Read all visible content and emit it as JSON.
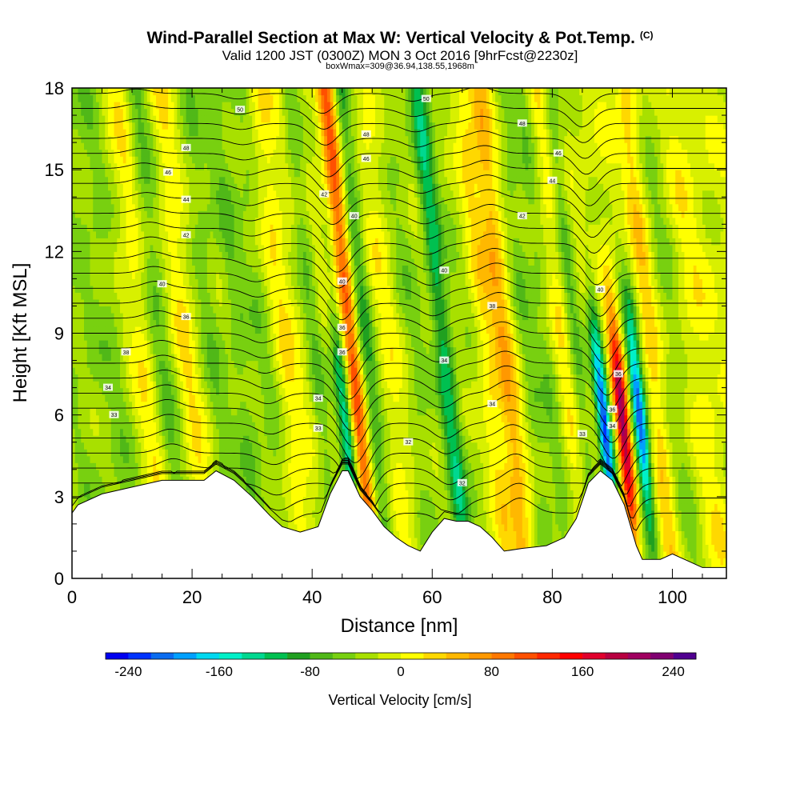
{
  "header": {
    "title": "Wind-Parallel Section at Max W: Vertical Velocity & Pot.Temp.",
    "title_mark": "(C)",
    "subtitle_line1": "Valid 1200 JST (0300Z) MON 3 Oct 2016 [9hrFcst@2230z]",
    "subtitle_line2": "boxWmax=309@36.94,138.55,1968m"
  },
  "chart_data": {
    "type": "heatmap",
    "title": "Wind-Parallel Section at Max W: Vertical Velocity & Pot.Temp.",
    "xlabel": "Distance [nm]",
    "ylabel": "Height [Kft MSL]",
    "xlim": [
      0,
      109
    ],
    "ylim": [
      0,
      18
    ],
    "x_ticks": [
      "0",
      "20",
      "40",
      "60",
      "80",
      "100"
    ],
    "y_ticks": [
      "0",
      "3",
      "6",
      "9",
      "12",
      "15",
      "18"
    ],
    "colorbar": {
      "label": "Vertical Velocity [cm/s]",
      "ticks": [
        "-240",
        "-160",
        "-80",
        "0",
        "80",
        "160",
        "240"
      ],
      "range": [
        -260,
        260
      ],
      "colors": [
        "#0000f0",
        "#0033ff",
        "#0a6cf0",
        "#00a0ff",
        "#00d8f0",
        "#00f0c8",
        "#00d890",
        "#00c050",
        "#20a020",
        "#50b818",
        "#78d010",
        "#a8e000",
        "#d8f000",
        "#ffff00",
        "#ffd800",
        "#ffb800",
        "#ff9800",
        "#ff7800",
        "#ff5000",
        "#ff2800",
        "#ff0000",
        "#e0002c",
        "#b80040",
        "#a00060",
        "#800070",
        "#500090"
      ]
    },
    "terrain_kft": [
      [
        0,
        2.4
      ],
      [
        1,
        2.7
      ],
      [
        5,
        3.1
      ],
      [
        10,
        3.35
      ],
      [
        15,
        3.6
      ],
      [
        22,
        3.6
      ],
      [
        24,
        3.95
      ],
      [
        27,
        3.6
      ],
      [
        30,
        3.0
      ],
      [
        33,
        2.3
      ],
      [
        35,
        1.9
      ],
      [
        38,
        1.7
      ],
      [
        41,
        1.9
      ],
      [
        43,
        3.1
      ],
      [
        45,
        3.95
      ],
      [
        46,
        3.95
      ],
      [
        48,
        3.0
      ],
      [
        50,
        2.5
      ],
      [
        52,
        1.9
      ],
      [
        54,
        1.5
      ],
      [
        56,
        1.2
      ],
      [
        58,
        1.0
      ],
      [
        60,
        1.7
      ],
      [
        62,
        2.2
      ],
      [
        64,
        2.1
      ],
      [
        66,
        2.1
      ],
      [
        68,
        1.9
      ],
      [
        70,
        1.5
      ],
      [
        72,
        1.0
      ],
      [
        75,
        1.1
      ],
      [
        79,
        1.2
      ],
      [
        82,
        1.5
      ],
      [
        84,
        2.2
      ],
      [
        86,
        3.5
      ],
      [
        88,
        3.95
      ],
      [
        90,
        3.6
      ],
      [
        92,
        2.7
      ],
      [
        94,
        1.2
      ],
      [
        95,
        0.7
      ],
      [
        98,
        0.7
      ],
      [
        100,
        0.9
      ],
      [
        103,
        0.6
      ],
      [
        105,
        0.4
      ],
      [
        109,
        0.4
      ]
    ],
    "theta_contour_labels": [
      {
        "x": 28,
        "y": 17.2,
        "text": "50"
      },
      {
        "x": 59,
        "y": 17.6,
        "text": "50"
      },
      {
        "x": 75,
        "y": 16.7,
        "text": "48"
      },
      {
        "x": 19,
        "y": 15.8,
        "text": "48"
      },
      {
        "x": 49,
        "y": 16.3,
        "text": "48"
      },
      {
        "x": 81,
        "y": 15.6,
        "text": "46"
      },
      {
        "x": 16,
        "y": 14.9,
        "text": "46"
      },
      {
        "x": 49,
        "y": 15.4,
        "text": "46"
      },
      {
        "x": 80,
        "y": 14.6,
        "text": "44"
      },
      {
        "x": 19,
        "y": 13.9,
        "text": "44"
      },
      {
        "x": 42,
        "y": 14.1,
        "text": "42"
      },
      {
        "x": 47,
        "y": 13.3,
        "text": "40"
      },
      {
        "x": 75,
        "y": 13.3,
        "text": "42"
      },
      {
        "x": 19,
        "y": 12.6,
        "text": "42"
      },
      {
        "x": 62,
        "y": 11.3,
        "text": "40"
      },
      {
        "x": 15,
        "y": 10.8,
        "text": "40"
      },
      {
        "x": 45,
        "y": 10.9,
        "text": "40"
      },
      {
        "x": 88,
        "y": 10.6,
        "text": "40"
      },
      {
        "x": 70,
        "y": 10.0,
        "text": "38"
      },
      {
        "x": 19,
        "y": 9.6,
        "text": "36"
      },
      {
        "x": 45,
        "y": 9.2,
        "text": "36"
      },
      {
        "x": 9,
        "y": 8.3,
        "text": "38"
      },
      {
        "x": 45,
        "y": 8.3,
        "text": "36"
      },
      {
        "x": 62,
        "y": 8.0,
        "text": "34"
      },
      {
        "x": 91,
        "y": 7.5,
        "text": "36"
      },
      {
        "x": 6,
        "y": 7.0,
        "text": "34"
      },
      {
        "x": 41,
        "y": 6.6,
        "text": "34"
      },
      {
        "x": 70,
        "y": 6.4,
        "text": "34"
      },
      {
        "x": 90,
        "y": 6.2,
        "text": "36"
      },
      {
        "x": 7,
        "y": 6.0,
        "text": "33"
      },
      {
        "x": 90,
        "y": 5.6,
        "text": "34"
      },
      {
        "x": 41,
        "y": 5.5,
        "text": "33"
      },
      {
        "x": 85,
        "y": 5.3,
        "text": "33"
      },
      {
        "x": 56,
        "y": 5.0,
        "text": "32"
      },
      {
        "x": 65,
        "y": 3.5,
        "text": "32"
      }
    ]
  }
}
